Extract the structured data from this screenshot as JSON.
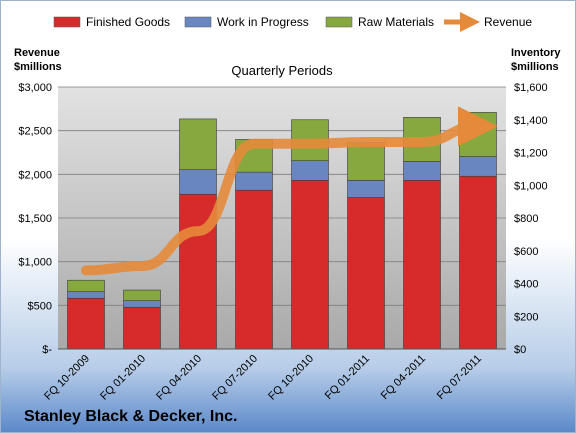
{
  "chart_data": {
    "type": "bar",
    "title": "Quarterly Periods",
    "company": "Stanley Black & Decker, Inc.",
    "categories": [
      "FQ 10-2009",
      "FQ 01-2010",
      "FQ 04-2010",
      "FQ 07-2010",
      "FQ 10-2010",
      "FQ 01-2011",
      "FQ 04-2011",
      "FQ 07-2011"
    ],
    "y_left": {
      "label_line1": "Revenue",
      "label_line2": "$millions",
      "range": [
        0,
        3000
      ],
      "ticks": [
        {
          "value": 0,
          "label": "$-"
        },
        {
          "value": 500,
          "label": "$500"
        },
        {
          "value": 1000,
          "label": "$1,000"
        },
        {
          "value": 1500,
          "label": "$1,500"
        },
        {
          "value": 2000,
          "label": "$2,000"
        },
        {
          "value": 2500,
          "label": "$2,500"
        },
        {
          "value": 3000,
          "label": "$3,000"
        }
      ]
    },
    "y_right": {
      "label_line1": "Inventory",
      "label_line2": "$millions",
      "range": [
        0,
        1600
      ],
      "ticks": [
        {
          "value": 0,
          "label": "$0"
        },
        {
          "value": 200,
          "label": "$200"
        },
        {
          "value": 400,
          "label": "$400"
        },
        {
          "value": 600,
          "label": "$600"
        },
        {
          "value": 800,
          "label": "$800"
        },
        {
          "value": 1000,
          "label": "$1,000"
        },
        {
          "value": 1200,
          "label": "$1,200"
        },
        {
          "value": 1400,
          "label": "$1,400"
        },
        {
          "value": 1600,
          "label": "$1,600"
        }
      ]
    },
    "series": [
      {
        "name": "Finished Goods",
        "axis": "right",
        "color": "#d62b2b",
        "values": [
          310,
          255,
          945,
          970,
          1030,
          925,
          1030,
          1055
        ]
      },
      {
        "name": "Work in Progress",
        "axis": "right",
        "color": "#6a86c0",
        "values": [
          40,
          40,
          150,
          110,
          120,
          105,
          115,
          120
        ]
      },
      {
        "name": "Raw Materials",
        "axis": "right",
        "color": "#86a83e",
        "values": [
          70,
          65,
          310,
          200,
          250,
          230,
          270,
          270
        ]
      },
      {
        "name": "Revenue",
        "axis": "left",
        "color": "#e58a3a",
        "type": "line",
        "values": [
          900,
          950,
          1350,
          2350,
          2350,
          2370,
          2370,
          2550
        ]
      }
    ],
    "grid": true,
    "legend_position": "top"
  }
}
